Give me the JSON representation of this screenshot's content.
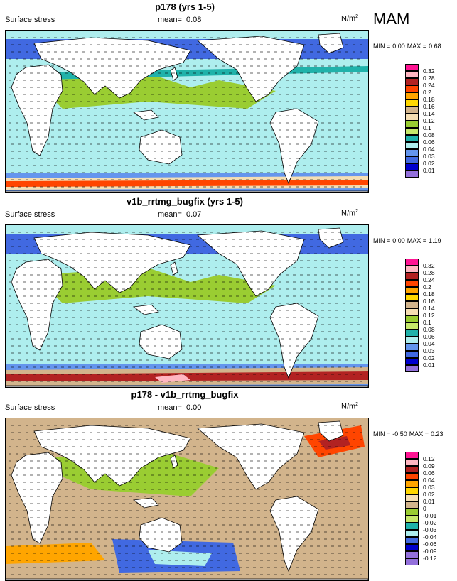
{
  "season": "MAM",
  "panels": [
    {
      "title": "p178 (yrs 1-5)",
      "variable": "Surface stress",
      "mean_label": "mean=",
      "mean_value": "0.08",
      "units_base": "N/m",
      "units_exp": "2",
      "min_label": "MIN =",
      "min_value": "0.00",
      "max_label": "MAX =",
      "max_value": "0.68",
      "colorbar": {
        "labels": [
          "0.32",
          "0.28",
          "0.24",
          "0.2",
          "0.18",
          "0.16",
          "0.14",
          "0.12",
          "0.1",
          "0.08",
          "0.06",
          "0.04",
          "0.03",
          "0.02",
          "0.01"
        ],
        "colors": [
          "#ff1493",
          "#ffb6c1",
          "#b22222",
          "#ff4500",
          "#ffa500",
          "#ffd700",
          "#d2b48c",
          "#f5deb3",
          "#9acd32",
          "#c6e86a",
          "#20b2aa",
          "#aeeeee",
          "#6495ed",
          "#4169e1",
          "#0000cd",
          "#9370db"
        ]
      }
    },
    {
      "title": "v1b_rrtmg_bugfix (yrs 1-5)",
      "variable": "Surface stress",
      "mean_label": "mean=",
      "mean_value": "0.07",
      "units_base": "N/m",
      "units_exp": "2",
      "min_label": "MIN =",
      "min_value": "0.00",
      "max_label": "MAX =",
      "max_value": "1.19",
      "colorbar": {
        "labels": [
          "0.32",
          "0.28",
          "0.24",
          "0.2",
          "0.18",
          "0.16",
          "0.14",
          "0.12",
          "0.1",
          "0.08",
          "0.06",
          "0.04",
          "0.03",
          "0.02",
          "0.01"
        ],
        "colors": [
          "#ff1493",
          "#ffb6c1",
          "#b22222",
          "#ff4500",
          "#ffa500",
          "#ffd700",
          "#d2b48c",
          "#f5deb3",
          "#9acd32",
          "#c6e86a",
          "#20b2aa",
          "#aeeeee",
          "#6495ed",
          "#4169e1",
          "#0000cd",
          "#9370db"
        ]
      }
    },
    {
      "title": "p178 - v1b_rrtmg_bugfix",
      "variable": "Surface stress",
      "mean_label": "mean=",
      "mean_value": "0.00",
      "units_base": "N/m",
      "units_exp": "2",
      "min_label": "MIN =",
      "min_value": "-0.50",
      "max_label": "MAX =",
      "max_value": "0.23",
      "colorbar": {
        "labels": [
          "0.12",
          "0.09",
          "0.06",
          "0.04",
          "0.03",
          "0.02",
          "0.01",
          "0",
          "-0.01",
          "-0.02",
          "-0.03",
          "-0.04",
          "-0.06",
          "-0.09",
          "-0.12"
        ],
        "colors": [
          "#ff1493",
          "#ffb6c1",
          "#b22222",
          "#ff4500",
          "#ffa500",
          "#ffd700",
          "#f5deb3",
          "#d2b48c",
          "#9acd32",
          "#c6e86a",
          "#20b2aa",
          "#aeeeee",
          "#4169e1",
          "#0000cd",
          "#9370db",
          "#9370db"
        ]
      }
    }
  ],
  "land_color": "#ffffff",
  "coast_color": "#000000",
  "vector_color": "#000000"
}
